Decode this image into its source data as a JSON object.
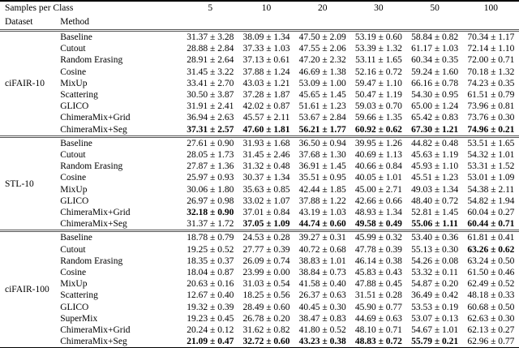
{
  "table": {
    "header": {
      "samples_per_class_label": "Samples per Class",
      "dataset_label": "Dataset",
      "method_label": "Method",
      "columns": [
        "5",
        "10",
        "20",
        "30",
        "50",
        "100"
      ]
    },
    "groups": [
      {
        "dataset": "ciFAIR-10",
        "rows": [
          {
            "method": "Baseline",
            "values": [
              "31.37 ± 3.28",
              "38.09 ± 1.34",
              "47.50 ± 2.09",
              "53.19 ± 0.60",
              "58.84 ± 0.82",
              "70.34 ± 1.17"
            ],
            "bold": [
              0,
              0,
              0,
              0,
              0,
              0
            ]
          },
          {
            "method": "Cutout",
            "values": [
              "28.88 ± 2.84",
              "37.33 ± 1.03",
              "47.55 ± 2.06",
              "53.39 ± 1.32",
              "61.17 ± 1.03",
              "72.14 ± 1.10"
            ],
            "bold": [
              0,
              0,
              0,
              0,
              0,
              0
            ]
          },
          {
            "method": "Random Erasing",
            "values": [
              "28.91 ± 2.64",
              "37.13 ± 0.61",
              "47.20 ± 2.32",
              "53.11 ± 1.65",
              "60.34 ± 0.35",
              "72.00 ± 0.71"
            ],
            "bold": [
              0,
              0,
              0,
              0,
              0,
              0
            ]
          },
          {
            "method": "Cosine",
            "values": [
              "31.45 ± 3.22",
              "37.88 ± 1.24",
              "46.69 ± 1.38",
              "52.16 ± 0.72",
              "59.24 ± 1.60",
              "70.18 ± 1.32"
            ],
            "bold": [
              0,
              0,
              0,
              0,
              0,
              0
            ]
          },
          {
            "method": "MixUp",
            "values": [
              "33.41 ± 2.70",
              "43.03 ± 1.21",
              "53.09 ± 1.00",
              "59.47 ± 1.10",
              "66.16 ± 0.78",
              "74.23 ± 0.35"
            ],
            "bold": [
              0,
              0,
              0,
              0,
              0,
              0
            ]
          },
          {
            "method": "Scattering",
            "values": [
              "30.50 ± 3.87",
              "37.28 ± 1.87",
              "45.65 ± 1.45",
              "50.47 ± 1.19",
              "54.30 ± 0.95",
              "61.51 ± 0.79"
            ],
            "bold": [
              0,
              0,
              0,
              0,
              0,
              0
            ]
          },
          {
            "method": "GLICO",
            "values": [
              "31.91 ± 2.41",
              "42.02 ± 0.87",
              "51.61 ± 1.23",
              "59.03 ± 0.70",
              "65.00 ± 1.24",
              "73.96 ± 0.81"
            ],
            "bold": [
              0,
              0,
              0,
              0,
              0,
              0
            ]
          },
          {
            "method": "ChimeraMix+Grid",
            "values": [
              "36.94 ± 2.63",
              "45.57 ± 2.11",
              "53.67 ± 2.84",
              "59.66 ± 1.35",
              "65.42 ± 0.83",
              "73.76 ± 0.30"
            ],
            "bold": [
              0,
              0,
              0,
              0,
              0,
              0
            ]
          },
          {
            "method": "ChimeraMix+Seg",
            "values": [
              "37.31 ± 2.57",
              "47.60 ± 1.81",
              "56.21 ± 1.77",
              "60.92 ± 0.62",
              "67.30 ± 1.21",
              "74.96 ± 0.21"
            ],
            "bold": [
              1,
              1,
              1,
              1,
              1,
              1
            ]
          }
        ]
      },
      {
        "dataset": "STL-10",
        "rows": [
          {
            "method": "Baseline",
            "values": [
              "27.61 ± 0.90",
              "31.93 ± 1.68",
              "36.50 ± 0.94",
              "39.95 ± 1.26",
              "44.82 ± 0.48",
              "53.51 ± 1.65"
            ],
            "bold": [
              0,
              0,
              0,
              0,
              0,
              0
            ]
          },
          {
            "method": "Cutout",
            "values": [
              "28.05 ± 1.73",
              "31.45 ± 2.46",
              "37.68 ± 1.30",
              "40.69 ± 1.13",
              "45.63 ± 1.19",
              "54.32 ± 1.01"
            ],
            "bold": [
              0,
              0,
              0,
              0,
              0,
              0
            ]
          },
          {
            "method": "Random Erasing",
            "values": [
              "27.87 ± 1.36",
              "31.32 ± 0.48",
              "36.91 ± 1.45",
              "40.66 ± 0.84",
              "45.93 ± 1.10",
              "53.31 ± 1.52"
            ],
            "bold": [
              0,
              0,
              0,
              0,
              0,
              0
            ]
          },
          {
            "method": "Cosine",
            "values": [
              "25.97 ± 0.93",
              "30.37 ± 1.34",
              "35.51 ± 0.95",
              "40.05 ± 1.01",
              "45.51 ± 1.23",
              "53.01 ± 1.09"
            ],
            "bold": [
              0,
              0,
              0,
              0,
              0,
              0
            ]
          },
          {
            "method": "MixUp",
            "values": [
              "30.06 ± 1.80",
              "35.63 ± 0.85",
              "42.44 ± 1.85",
              "45.00 ± 2.71",
              "49.03 ± 1.34",
              "54.38 ± 2.11"
            ],
            "bold": [
              0,
              0,
              0,
              0,
              0,
              0
            ]
          },
          {
            "method": "GLICO",
            "values": [
              "26.97 ± 0.98",
              "33.02 ± 1.07",
              "37.88 ± 1.22",
              "42.66 ± 0.66",
              "48.40 ± 0.72",
              "54.82 ± 1.94"
            ],
            "bold": [
              0,
              0,
              0,
              0,
              0,
              0
            ]
          },
          {
            "method": "ChimeraMix+Grid",
            "values": [
              "32.18 ± 0.90",
              "37.01 ± 0.84",
              "43.19 ± 1.03",
              "48.93 ± 1.34",
              "52.81 ± 1.45",
              "60.04 ± 0.27"
            ],
            "bold": [
              1,
              0,
              0,
              0,
              0,
              0
            ]
          },
          {
            "method": "ChimeraMix+Seg",
            "values": [
              "31.37 ± 1.72",
              "37.05 ± 1.09",
              "44.74 ± 0.60",
              "49.58 ± 0.49",
              "55.06 ± 1.11",
              "60.44 ± 0.71"
            ],
            "bold": [
              0,
              1,
              1,
              1,
              1,
              1
            ]
          }
        ]
      },
      {
        "dataset": "ciFAIR-100",
        "rows": [
          {
            "method": "Baseline",
            "values": [
              "18.78 ± 0.79",
              "24.53 ± 0.28",
              "39.27 ± 0.31",
              "45.99 ± 0.32",
              "53.40 ± 0.36",
              "61.81 ± 0.41"
            ],
            "bold": [
              0,
              0,
              0,
              0,
              0,
              0
            ]
          },
          {
            "method": "Cutout",
            "values": [
              "19.25 ± 0.52",
              "27.77 ± 0.39",
              "40.72 ± 0.68",
              "47.78 ± 0.39",
              "55.13 ± 0.30",
              "63.26 ± 0.62"
            ],
            "bold": [
              0,
              0,
              0,
              0,
              0,
              1
            ]
          },
          {
            "method": "Random Erasing",
            "values": [
              "18.35 ± 0.37",
              "26.09 ± 0.74",
              "38.83 ± 1.01",
              "46.14 ± 0.38",
              "54.26 ± 0.08",
              "63.24 ± 0.50"
            ],
            "bold": [
              0,
              0,
              0,
              0,
              0,
              0
            ]
          },
          {
            "method": "Cosine",
            "values": [
              "18.04 ± 0.87",
              "23.99 ± 0.00",
              "38.84 ± 0.73",
              "45.83 ± 0.43",
              "53.32 ± 0.11",
              "61.50 ± 0.46"
            ],
            "bold": [
              0,
              0,
              0,
              0,
              0,
              0
            ]
          },
          {
            "method": "MixUp",
            "values": [
              "20.63 ± 0.16",
              "31.03 ± 0.54",
              "41.58 ± 0.40",
              "47.88 ± 0.45",
              "54.87 ± 0.20",
              "62.49 ± 0.52"
            ],
            "bold": [
              0,
              0,
              0,
              0,
              0,
              0
            ]
          },
          {
            "method": "Scattering",
            "values": [
              "12.67 ± 0.40",
              "18.25 ± 0.56",
              "26.37 ± 0.63",
              "31.51 ± 0.28",
              "36.49 ± 0.42",
              "48.18 ± 0.33"
            ],
            "bold": [
              0,
              0,
              0,
              0,
              0,
              0
            ]
          },
          {
            "method": "GLICO",
            "values": [
              "19.32 ± 0.39",
              "28.49 ± 0.60",
              "40.45 ± 0.30",
              "45.90 ± 0.77",
              "53.53 ± 0.19",
              "60.68 ± 0.50"
            ],
            "bold": [
              0,
              0,
              0,
              0,
              0,
              0
            ]
          },
          {
            "method": "SuperMix",
            "values": [
              "19.23 ± 0.45",
              "26.78 ± 0.20",
              "38.47 ± 0.83",
              "44.69 ± 0.63",
              "53.07 ± 0.13",
              "62.63 ± 0.30"
            ],
            "bold": [
              0,
              0,
              0,
              0,
              0,
              0
            ]
          },
          {
            "method": "ChimeraMix+Grid",
            "values": [
              "20.24 ± 0.12",
              "31.62 ± 0.82",
              "41.80 ± 0.52",
              "48.10 ± 0.71",
              "54.67 ± 1.01",
              "62.13 ± 0.27"
            ],
            "bold": [
              0,
              0,
              0,
              0,
              0,
              0
            ]
          },
          {
            "method": "ChimeraMix+Seg",
            "values": [
              "21.09 ± 0.47",
              "32.72 ± 0.60",
              "43.23 ± 0.38",
              "48.83 ± 0.72",
              "55.79 ± 0.21",
              "62.96 ± 0.77"
            ],
            "bold": [
              1,
              1,
              1,
              1,
              1,
              0
            ]
          }
        ]
      }
    ]
  }
}
